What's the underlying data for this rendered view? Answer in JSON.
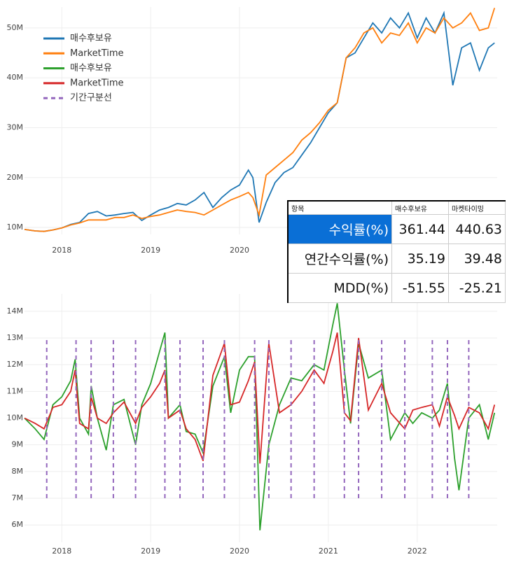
{
  "chart_data": [
    {
      "type": "line",
      "legend": "top-left",
      "grid": true,
      "xlim": [
        2017.58,
        2022.9
      ],
      "xticks": [
        2018,
        2019,
        2020
      ],
      "ylim": [
        8.6,
        54.2
      ],
      "yticks": [
        {
          "value": 10,
          "label": "10M"
        },
        {
          "value": 20,
          "label": "20M"
        },
        {
          "value": 30,
          "label": "30M"
        },
        {
          "value": 40,
          "label": "40M"
        },
        {
          "value": 50,
          "label": "50M"
        }
      ],
      "x": [
        2017.58,
        2017.7,
        2017.8,
        2017.9,
        2018.0,
        2018.1,
        2018.2,
        2018.3,
        2018.4,
        2018.5,
        2018.6,
        2018.7,
        2018.8,
        2018.9,
        2019.0,
        2019.1,
        2019.2,
        2019.3,
        2019.4,
        2019.5,
        2019.6,
        2019.7,
        2019.8,
        2019.9,
        2020.0,
        2020.1,
        2020.15,
        2020.22,
        2020.3,
        2020.4,
        2020.5,
        2020.6,
        2020.7,
        2020.8,
        2020.9,
        2021.0,
        2021.1,
        2021.2,
        2021.3,
        2021.4,
        2021.5,
        2021.6,
        2021.7,
        2021.8,
        2021.9,
        2022.0,
        2022.1,
        2022.2,
        2022.3,
        2022.4,
        2022.5,
        2022.6,
        2022.7,
        2022.8,
        2022.87
      ],
      "series": [
        {
          "name": "매수후보유",
          "color": "#1f77b4",
          "values": [
            9.6,
            9.3,
            9.2,
            9.5,
            9.9,
            10.6,
            11.0,
            12.8,
            13.2,
            12.3,
            12.5,
            12.8,
            13.0,
            11.4,
            12.5,
            13.5,
            14.0,
            14.8,
            14.5,
            15.5,
            17.0,
            14.0,
            16.0,
            17.5,
            18.5,
            21.5,
            20.0,
            11.0,
            15.0,
            19.0,
            21.0,
            22.0,
            24.5,
            27.0,
            30.0,
            33.0,
            35.0,
            44.0,
            45.0,
            48.0,
            51.0,
            49.0,
            52.0,
            50.0,
            53.0,
            48.0,
            52.0,
            49.0,
            53.0,
            38.5,
            46.0,
            47.0,
            41.5,
            46.0,
            47.0
          ]
        },
        {
          "name": "MarketTime",
          "color": "#ff7f0e",
          "values": [
            9.6,
            9.3,
            9.2,
            9.5,
            9.9,
            10.5,
            10.9,
            11.5,
            11.5,
            11.5,
            12.0,
            12.0,
            12.5,
            11.8,
            12.2,
            12.5,
            13.0,
            13.5,
            13.2,
            13.0,
            12.5,
            13.5,
            14.5,
            15.5,
            16.2,
            17.0,
            16.0,
            12.5,
            20.5,
            22.0,
            23.5,
            25.0,
            27.5,
            29.0,
            31.0,
            33.5,
            35.0,
            44.0,
            46.0,
            49.0,
            50.0,
            47.0,
            49.0,
            48.5,
            51.0,
            47.0,
            50.0,
            49.0,
            52.0,
            50.0,
            51.0,
            53.0,
            49.5,
            50.0,
            54.0
          ]
        }
      ]
    },
    {
      "type": "line",
      "grid": true,
      "xlim": [
        2017.58,
        2022.9
      ],
      "xticks": [
        2018,
        2019,
        2020,
        2021,
        2022
      ],
      "ylim": [
        5.35,
        14.65
      ],
      "yticks": [
        {
          "value": 6,
          "label": "6M"
        },
        {
          "value": 7,
          "label": "7M"
        },
        {
          "value": 8,
          "label": "8M"
        },
        {
          "value": 9,
          "label": "9M"
        },
        {
          "value": 10,
          "label": "10M"
        },
        {
          "value": 11,
          "label": "11M"
        },
        {
          "value": 12,
          "label": "12M"
        },
        {
          "value": 13,
          "label": "13M"
        },
        {
          "value": 14,
          "label": "14M"
        }
      ],
      "x": [
        2017.58,
        2017.7,
        2017.8,
        2017.9,
        2018.0,
        2018.1,
        2018.15,
        2018.2,
        2018.3,
        2018.33,
        2018.4,
        2018.5,
        2018.58,
        2018.7,
        2018.83,
        2018.9,
        2019.0,
        2019.1,
        2019.16,
        2019.2,
        2019.33,
        2019.4,
        2019.5,
        2019.59,
        2019.7,
        2019.83,
        2019.9,
        2020.0,
        2020.1,
        2020.17,
        2020.23,
        2020.33,
        2020.45,
        2020.58,
        2020.7,
        2020.84,
        2020.95,
        2021.05,
        2021.1,
        2021.18,
        2021.25,
        2021.34,
        2021.45,
        2021.6,
        2021.7,
        2021.86,
        2021.95,
        2022.05,
        2022.17,
        2022.25,
        2022.34,
        2022.42,
        2022.47,
        2022.58,
        2022.7,
        2022.8,
        2022.87
      ],
      "series": [
        {
          "name": "매수후보유",
          "color": "#2ca02c",
          "values": [
            10,
            9.6,
            9.2,
            10.5,
            10.8,
            11.4,
            12.2,
            10,
            9.4,
            11.2,
            10.0,
            8.8,
            10.5,
            10.7,
            9.0,
            10.5,
            11.3,
            12.5,
            13.2,
            10.0,
            10.5,
            9.5,
            9.4,
            8.7,
            11.2,
            12.3,
            10.2,
            11.8,
            12.3,
            12.3,
            5.8,
            9.0,
            10.5,
            11.5,
            11.4,
            12.0,
            11.8,
            13.5,
            14.3,
            11.8,
            9.8,
            12.8,
            11.5,
            11.8,
            9.2,
            10.2,
            9.8,
            10.2,
            10.0,
            10.3,
            11.3,
            8.5,
            7.3,
            10.0,
            10.5,
            9.2,
            10.2
          ]
        },
        {
          "name": "MarketTime",
          "color": "#d62728",
          "values": [
            10,
            9.8,
            9.6,
            10.4,
            10.5,
            11.0,
            11.8,
            9.8,
            9.6,
            10.8,
            10.0,
            9.8,
            10.2,
            10.6,
            9.8,
            10.4,
            10.8,
            11.3,
            11.8,
            10.0,
            10.3,
            9.6,
            9.2,
            8.4,
            11.6,
            12.8,
            10.5,
            10.6,
            11.4,
            12.1,
            8.3,
            12.8,
            10.2,
            10.5,
            11.0,
            11.8,
            11.3,
            12.5,
            13.2,
            10.2,
            9.9,
            13.0,
            10.3,
            11.3,
            10.2,
            9.6,
            10.3,
            10.4,
            10.5,
            9.7,
            10.8,
            10.1,
            9.6,
            10.4,
            10.2,
            9.6,
            10.5
          ]
        },
        {
          "name": "기간구분선",
          "color": "#9467bd",
          "dash": true,
          "span": [
            7,
            13
          ],
          "x": [
            2017.83,
            2018.16,
            2018.33,
            2018.58,
            2018.83,
            2019.16,
            2019.33,
            2019.59,
            2019.83,
            2020.17,
            2020.33,
            2020.58,
            2020.84,
            2021.18,
            2021.34,
            2021.6,
            2021.86,
            2022.17,
            2022.34,
            2022.58
          ]
        }
      ]
    }
  ],
  "table": {
    "header": [
      "항목",
      "매수후보유",
      "마켓타이밍"
    ],
    "rows": [
      [
        "수익률(%)",
        361.44,
        440.63
      ],
      [
        "연간수익률(%)",
        35.19,
        39.48
      ],
      [
        "MDD(%)",
        -51.55,
        -25.21
      ]
    ]
  }
}
